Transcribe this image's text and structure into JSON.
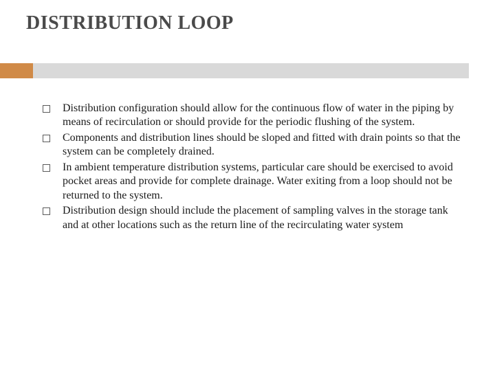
{
  "slide": {
    "title": "DISTRIBUTION LOOP",
    "accent_color": "#d08a47",
    "bar_color": "#d9d9d9",
    "bullets": [
      "Distribution configuration should allow for the continuous flow of water in the piping by means of recirculation or should provide for the periodic flushing of the system.",
      "Components and distribution lines should be sloped and fitted with drain points so that the system can be completely drained.",
      "In ambient temperature distribution systems, particular care should be exercised to avoid pocket areas and provide for complete drainage. Water exiting from a loop should not be returned to the system.",
      "Distribution design should include the placement of sampling valves in the storage tank and at other locations such as the return line of the recirculating water system"
    ]
  }
}
